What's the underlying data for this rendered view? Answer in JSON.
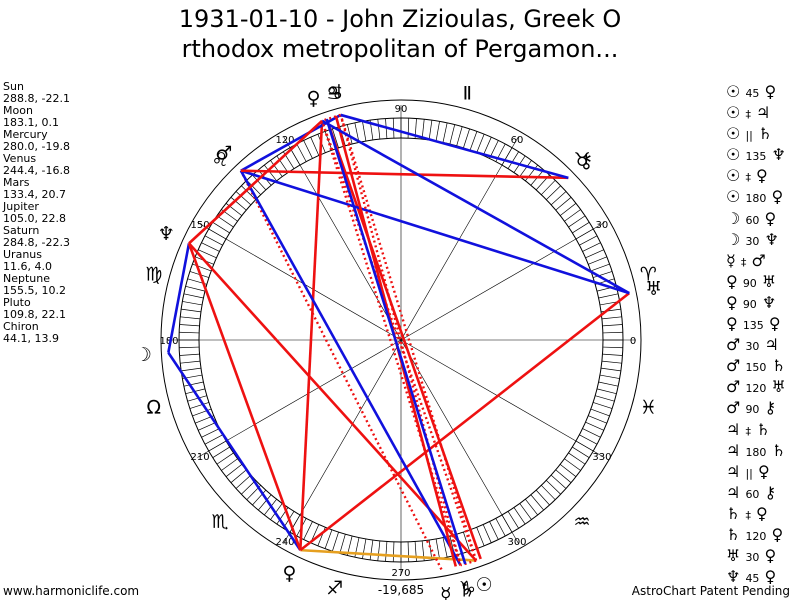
{
  "title_line1": "1931-01-10 - John Zizioulas, Greek O",
  "title_line2": "rthodox metropolitan of Pergamon...",
  "footer_left": "www.harmoniclife.com",
  "footer_right": "AstroChart Patent Pending",
  "center_bottom_value": "-19,685",
  "chart_data": {
    "type": "astrological-wheel",
    "planets": [
      {
        "name": "Sun",
        "symbol": "☉",
        "longitude": 288.8,
        "latitude": -22.1,
        "coords": "288.8, -22.1"
      },
      {
        "name": "Moon",
        "symbol": "☽",
        "longitude": 183.1,
        "latitude": 0.1,
        "coords": "183.1, 0.1"
      },
      {
        "name": "Mercury",
        "symbol": "☿",
        "longitude": 280.0,
        "latitude": -19.8,
        "coords": "280.0, -19.8"
      },
      {
        "name": "Venus",
        "symbol": "♀",
        "longitude": 244.4,
        "latitude": -16.8,
        "coords": "244.4, -16.8"
      },
      {
        "name": "Mars",
        "symbol": "♂",
        "longitude": 133.4,
        "latitude": 20.7,
        "coords": "133.4, 20.7"
      },
      {
        "name": "Jupiter",
        "symbol": "♃",
        "longitude": 105.0,
        "latitude": 22.8,
        "coords": "105.0, 22.8"
      },
      {
        "name": "Saturn",
        "symbol": "♄",
        "longitude": 284.8,
        "latitude": -22.3,
        "coords": "284.8, -22.3"
      },
      {
        "name": "Uranus",
        "symbol": "♅",
        "longitude": 11.6,
        "latitude": 4.0,
        "coords": "11.6, 4.0"
      },
      {
        "name": "Neptune",
        "symbol": "♆",
        "longitude": 155.5,
        "latitude": 10.2,
        "coords": "155.5, 10.2"
      },
      {
        "name": "Pluto",
        "symbol": "♀",
        "longitude": 109.8,
        "latitude": 22.1,
        "coords": "109.8, 22.1"
      },
      {
        "name": "Chiron",
        "symbol": "⚷",
        "longitude": 44.1,
        "latitude": 13.9,
        "coords": "44.1, 13.9"
      }
    ],
    "degree_labels": [
      "0",
      "30",
      "60",
      "90",
      "120",
      "150",
      "180",
      "210",
      "240",
      "270",
      "300",
      "330"
    ],
    "zodiac_signs": [
      {
        "symbol": "♈",
        "name": "aries-glyph",
        "longitude": 15
      },
      {
        "symbol": "♉",
        "name": "taurus-glyph",
        "longitude": 45
      },
      {
        "symbol": "Ⅱ",
        "name": "gemini-glyph",
        "longitude": 75
      },
      {
        "symbol": "♋",
        "name": "cancer-glyph",
        "longitude": 105
      },
      {
        "symbol": "♌",
        "name": "leo-glyph",
        "longitude": 135
      },
      {
        "symbol": "♍",
        "name": "virgo-glyph",
        "longitude": 165
      },
      {
        "symbol": "Ω",
        "name": "libra-glyph",
        "longitude": 195
      },
      {
        "symbol": "♏",
        "name": "scorpio-glyph",
        "longitude": 225
      },
      {
        "symbol": "♐",
        "name": "sagittarius-glyph",
        "longitude": 255
      },
      {
        "symbol": "♑",
        "name": "capricorn-glyph",
        "longitude": 285
      },
      {
        "symbol": "♒",
        "name": "aquarius-glyph",
        "longitude": 315
      },
      {
        "symbol": "♓",
        "name": "pisces-glyph",
        "longitude": 345
      }
    ],
    "aspects": [
      {
        "p1": "☉",
        "angle": "45",
        "p2": "♀",
        "color": "#e6a020",
        "style": "solid"
      },
      {
        "p1": "☉",
        "angle": "‡",
        "p2": "♃",
        "color": "#ee1111",
        "style": "dotted"
      },
      {
        "p1": "☉",
        "angle": "||",
        "p2": "♄",
        "color": "#ee1111",
        "style": "dotted"
      },
      {
        "p1": "☉",
        "angle": "135",
        "p2": "♆",
        "color": "#ee1111",
        "style": "solid"
      },
      {
        "p1": "☉",
        "angle": "‡",
        "p2": "♀",
        "color": "#ee1111",
        "style": "dotted"
      },
      {
        "p1": "☉",
        "angle": "180",
        "p2": "♀",
        "color": "#ee1111",
        "style": "solid"
      },
      {
        "p1": "☽",
        "angle": "60",
        "p2": "♀",
        "color": "#1111dd",
        "style": "solid"
      },
      {
        "p1": "☽",
        "angle": "30",
        "p2": "♆",
        "color": "#1111dd",
        "style": "solid"
      },
      {
        "p1": "☿",
        "angle": "‡",
        "p2": "♂",
        "color": "#ee1111",
        "style": "dotted"
      },
      {
        "p1": "♀",
        "angle": "90",
        "p2": "♅",
        "color": "#ee1111",
        "style": "solid"
      },
      {
        "p1": "♀",
        "angle": "90",
        "p2": "♆",
        "color": "#ee1111",
        "style": "solid"
      },
      {
        "p1": "♀",
        "angle": "135",
        "p2": "♀",
        "color": "#ee1111",
        "style": "solid"
      },
      {
        "p1": "♂",
        "angle": "30",
        "p2": "♃",
        "color": "#1111dd",
        "style": "solid"
      },
      {
        "p1": "♂",
        "angle": "150",
        "p2": "♄",
        "color": "#1111dd",
        "style": "solid"
      },
      {
        "p1": "♂",
        "angle": "120",
        "p2": "♅",
        "color": "#1111dd",
        "style": "solid"
      },
      {
        "p1": "♂",
        "angle": "90",
        "p2": "⚷",
        "color": "#ee1111",
        "style": "solid"
      },
      {
        "p1": "♃",
        "angle": "‡",
        "p2": "♄",
        "color": "#ee1111",
        "style": "dotted"
      },
      {
        "p1": "♃",
        "angle": "180",
        "p2": "♄",
        "color": "#ee1111",
        "style": "solid"
      },
      {
        "p1": "♃",
        "angle": "||",
        "p2": "♀",
        "color": "#ee1111",
        "style": "dotted"
      },
      {
        "p1": "♃",
        "angle": "60",
        "p2": "⚷",
        "color": "#1111dd",
        "style": "solid"
      },
      {
        "p1": "♄",
        "angle": "‡",
        "p2": "♀",
        "color": "#ee1111",
        "style": "dotted"
      },
      {
        "p1": "♄",
        "angle": "120",
        "p2": "♀",
        "color": "#1111dd",
        "style": "solid"
      },
      {
        "p1": "♅",
        "angle": "30",
        "p2": "♀",
        "color": "#1111dd",
        "style": "solid"
      },
      {
        "p1": "♆",
        "angle": "45",
        "p2": "♀",
        "color": "#ee1111",
        "style": "solid"
      }
    ],
    "colors": {
      "hard": "#ee1111",
      "soft": "#1111dd",
      "minor": "#e6a020"
    }
  }
}
